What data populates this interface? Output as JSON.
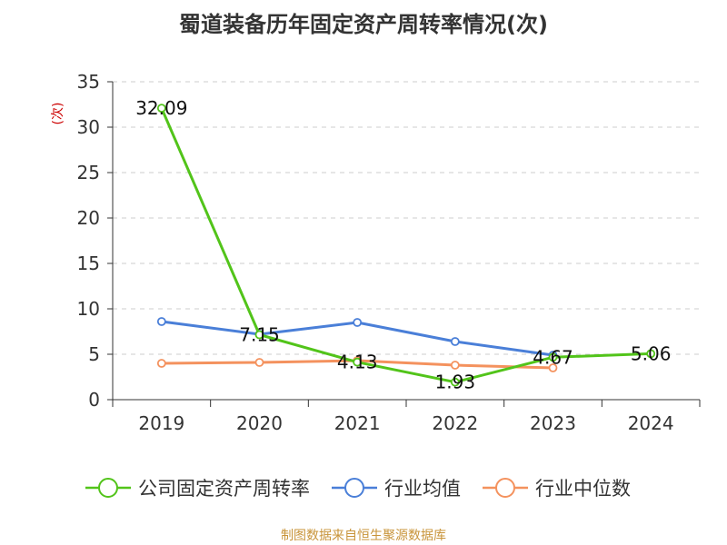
{
  "chart_data": {
    "type": "line",
    "title": "蜀道装备历年固定资产周转率情况(次)",
    "ylabel": "(次)",
    "xlabel": "",
    "categories": [
      "2019",
      "2020",
      "2021",
      "2022",
      "2023",
      "2024"
    ],
    "yticks": [
      0,
      5,
      10,
      15,
      20,
      25,
      30,
      35
    ],
    "ylim": [
      0,
      35
    ],
    "grid": true,
    "legend_position": "bottom",
    "series": [
      {
        "name": "公司固定资产周转率",
        "color": "#52c41a",
        "values": [
          32.09,
          7.15,
          4.13,
          1.93,
          4.67,
          5.06
        ],
        "show_labels": true
      },
      {
        "name": "行业均值",
        "color": "#4a7fd8",
        "values": [
          8.6,
          7.2,
          8.5,
          6.4,
          4.9,
          null
        ],
        "show_labels": false
      },
      {
        "name": "行业中位数",
        "color": "#f4925e",
        "values": [
          4.0,
          4.1,
          4.3,
          3.8,
          3.5,
          null
        ],
        "show_labels": false
      }
    ],
    "source": "制图数据来自恒生聚源数据库"
  }
}
